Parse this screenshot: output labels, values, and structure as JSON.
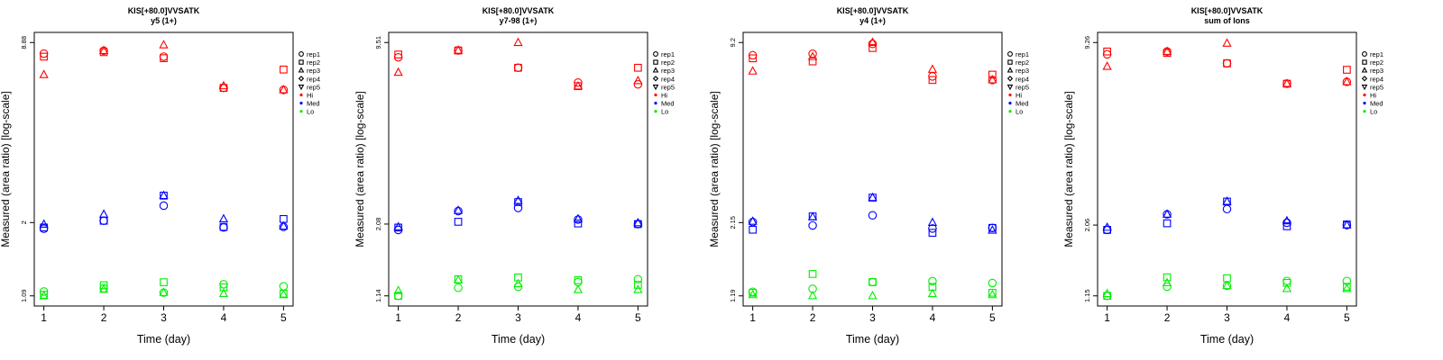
{
  "colors": {
    "Hi": "#ff0000",
    "Med": "#0000ff",
    "Lo": "#00ee00"
  },
  "chart_data": [
    {
      "type": "scatter",
      "title": "KIS[+80.0]VVSATK",
      "subtitle": "y5 (1+)",
      "xlabel": "Time (day)",
      "ylabel": "Measured (area ratio) [log-scale]",
      "x_ticks": [
        "1",
        "2",
        "3",
        "4",
        "5"
      ],
      "y_ticks": [
        "1.09",
        "2",
        "8.88"
      ],
      "ylim": [
        1.09,
        8.88
      ],
      "y_scale": "log",
      "grid": false,
      "legend_position": "right",
      "legend": [
        {
          "label": "rep1",
          "symbol": "circle"
        },
        {
          "label": "rep2",
          "symbol": "square"
        },
        {
          "label": "rep3",
          "symbol": "triangle-up"
        },
        {
          "label": "rep4",
          "symbol": "diamond"
        },
        {
          "label": "rep5",
          "symbol": "triangle-down"
        },
        {
          "label": "Hi",
          "symbol": "dot",
          "group": "Hi"
        },
        {
          "label": "Med",
          "symbol": "dot",
          "group": "Med"
        },
        {
          "label": "Lo",
          "symbol": "dot",
          "group": "Lo"
        }
      ],
      "series": [
        {
          "group": "Hi",
          "rep": "rep1",
          "x": [
            1,
            2,
            3,
            4,
            5
          ],
          "y": [
            8.1,
            8.3,
            7.9,
            6.1,
            6.0
          ]
        },
        {
          "group": "Hi",
          "rep": "rep2",
          "x": [
            1,
            2,
            3,
            4,
            5
          ],
          "y": [
            7.9,
            8.2,
            7.8,
            6.1,
            7.1
          ]
        },
        {
          "group": "Hi",
          "rep": "rep3",
          "x": [
            1,
            2,
            3,
            4,
            5
          ],
          "y": [
            6.8,
            8.3,
            8.7,
            6.2,
            6.0
          ]
        },
        {
          "group": "Med",
          "rep": "rep1",
          "x": [
            1,
            2,
            3,
            4,
            5
          ],
          "y": [
            1.9,
            2.03,
            2.3,
            1.92,
            1.93
          ]
        },
        {
          "group": "Med",
          "rep": "rep2",
          "x": [
            1,
            2,
            3,
            4,
            5
          ],
          "y": [
            1.92,
            2.03,
            2.5,
            1.93,
            2.06
          ]
        },
        {
          "group": "Med",
          "rep": "rep3",
          "x": [
            1,
            2,
            3,
            4,
            5
          ],
          "y": [
            1.97,
            2.14,
            2.5,
            2.06,
            1.94
          ]
        },
        {
          "group": "Lo",
          "rep": "rep1",
          "x": [
            1,
            2,
            3,
            4,
            5
          ],
          "y": [
            1.13,
            1.16,
            1.12,
            1.2,
            1.18
          ]
        },
        {
          "group": "Lo",
          "rep": "rep2",
          "x": [
            1,
            2,
            3,
            4,
            5
          ],
          "y": [
            1.1,
            1.19,
            1.22,
            1.17,
            1.11
          ]
        },
        {
          "group": "Lo",
          "rep": "rep3",
          "x": [
            1,
            2,
            3,
            4,
            5
          ],
          "y": [
            1.09,
            1.15,
            1.12,
            1.11,
            1.1
          ]
        }
      ]
    },
    {
      "type": "scatter",
      "title": "KIS[+80.0]VVSATK",
      "subtitle": "y7-98 (1+)",
      "xlabel": "Time (day)",
      "ylabel": "Measured (area ratio) [log-scale]",
      "x_ticks": [
        "1",
        "2",
        "3",
        "4",
        "5"
      ],
      "y_ticks": [
        "1.14",
        "2.08",
        "9.51"
      ],
      "ylim": [
        1.14,
        9.51
      ],
      "y_scale": "log",
      "grid": false,
      "legend_position": "right",
      "legend": [
        {
          "label": "rep1",
          "symbol": "circle"
        },
        {
          "label": "rep2",
          "symbol": "square"
        },
        {
          "label": "rep3",
          "symbol": "triangle-up"
        },
        {
          "label": "rep4",
          "symbol": "diamond"
        },
        {
          "label": "rep5",
          "symbol": "triangle-down"
        },
        {
          "label": "Hi",
          "symbol": "dot",
          "group": "Hi"
        },
        {
          "label": "Med",
          "symbol": "dot",
          "group": "Med"
        },
        {
          "label": "Lo",
          "symbol": "dot",
          "group": "Lo"
        }
      ],
      "series": [
        {
          "group": "Hi",
          "rep": "rep1",
          "x": [
            1,
            2,
            3,
            4,
            5
          ],
          "y": [
            8.4,
            8.9,
            7.7,
            6.8,
            6.7
          ]
        },
        {
          "group": "Hi",
          "rep": "rep2",
          "x": [
            1,
            2,
            3,
            4,
            5
          ],
          "y": [
            8.6,
            8.9,
            7.7,
            6.6,
            7.7
          ]
        },
        {
          "group": "Hi",
          "rep": "rep3",
          "x": [
            1,
            2,
            3,
            4,
            5
          ],
          "y": [
            7.4,
            8.9,
            9.5,
            6.6,
            6.9
          ]
        },
        {
          "group": "Med",
          "rep": "rep1",
          "x": [
            1,
            2,
            3,
            4,
            5
          ],
          "y": [
            1.98,
            2.32,
            2.38,
            2.16,
            2.08
          ]
        },
        {
          "group": "Med",
          "rep": "rep2",
          "x": [
            1,
            2,
            3,
            4,
            5
          ],
          "y": [
            2.02,
            2.12,
            2.5,
            2.09,
            2.08
          ]
        },
        {
          "group": "Med",
          "rep": "rep3",
          "x": [
            1,
            2,
            3,
            4,
            5
          ],
          "y": [
            2.03,
            2.33,
            2.53,
            2.17,
            2.1
          ]
        },
        {
          "group": "Lo",
          "rep": "rep1",
          "x": [
            1,
            2,
            3,
            4,
            5
          ],
          "y": [
            1.14,
            1.22,
            1.23,
            1.28,
            1.31
          ]
        },
        {
          "group": "Lo",
          "rep": "rep2",
          "x": [
            1,
            2,
            3,
            4,
            5
          ],
          "y": [
            1.14,
            1.31,
            1.33,
            1.3,
            1.25
          ]
        },
        {
          "group": "Lo",
          "rep": "rep3",
          "x": [
            1,
            2,
            3,
            4,
            5
          ],
          "y": [
            1.19,
            1.3,
            1.26,
            1.2,
            1.2
          ]
        }
      ]
    },
    {
      "type": "scatter",
      "title": "KIS[+80.0]VVSATK",
      "subtitle": "y4 (1+)",
      "xlabel": "Time (day)",
      "ylabel": "Measured (area ratio) [log-scale]",
      "x_ticks": [
        "1",
        "2",
        "3",
        "4",
        "5"
      ],
      "y_ticks": [
        "1.19",
        "2.15",
        "9.2"
      ],
      "ylim": [
        1.19,
        9.2
      ],
      "y_scale": "log",
      "grid": false,
      "legend_position": "right",
      "legend": [
        {
          "label": "rep1",
          "symbol": "circle"
        },
        {
          "label": "rep2",
          "symbol": "square"
        },
        {
          "label": "rep3",
          "symbol": "triangle-up"
        },
        {
          "label": "rep4",
          "symbol": "diamond"
        },
        {
          "label": "rep5",
          "symbol": "triangle-down"
        },
        {
          "label": "Hi",
          "symbol": "dot",
          "group": "Hi"
        },
        {
          "label": "Med",
          "symbol": "dot",
          "group": "Med"
        },
        {
          "label": "Lo",
          "symbol": "dot",
          "group": "Lo"
        }
      ],
      "series": [
        {
          "group": "Hi",
          "rep": "rep1",
          "x": [
            1,
            2,
            3,
            4,
            5
          ],
          "y": [
            8.3,
            8.4,
            9.1,
            7.0,
            6.8
          ]
        },
        {
          "group": "Hi",
          "rep": "rep2",
          "x": [
            1,
            2,
            3,
            4,
            5
          ],
          "y": [
            8.1,
            7.9,
            8.8,
            6.8,
            7.1
          ]
        },
        {
          "group": "Hi",
          "rep": "rep3",
          "x": [
            1,
            2,
            3,
            4,
            5
          ],
          "y": [
            7.3,
            8.2,
            9.2,
            7.4,
            6.8
          ]
        },
        {
          "group": "Med",
          "rep": "rep1",
          "x": [
            1,
            2,
            3,
            4,
            5
          ],
          "y": [
            2.16,
            2.1,
            2.28,
            2.05,
            2.06
          ]
        },
        {
          "group": "Med",
          "rep": "rep2",
          "x": [
            1,
            2,
            3,
            4,
            5
          ],
          "y": [
            2.03,
            2.26,
            2.63,
            1.98,
            2.06
          ]
        },
        {
          "group": "Med",
          "rep": "rep3",
          "x": [
            1,
            2,
            3,
            4,
            5
          ],
          "y": [
            2.17,
            2.25,
            2.63,
            2.15,
            2.02
          ]
        },
        {
          "group": "Lo",
          "rep": "rep1",
          "x": [
            1,
            2,
            3,
            4,
            5
          ],
          "y": [
            1.23,
            1.26,
            1.33,
            1.34,
            1.32
          ]
        },
        {
          "group": "Lo",
          "rep": "rep2",
          "x": [
            1,
            2,
            3,
            4,
            5
          ],
          "y": [
            1.22,
            1.42,
            1.33,
            1.28,
            1.22
          ]
        },
        {
          "group": "Lo",
          "rep": "rep3",
          "x": [
            1,
            2,
            3,
            4,
            5
          ],
          "y": [
            1.2,
            1.19,
            1.19,
            1.21,
            1.2
          ]
        }
      ]
    },
    {
      "type": "scatter",
      "title": "KIS[+80.0]VVSATK",
      "subtitle": "sum of Ions",
      "xlabel": "Time (day)",
      "ylabel": "Measured (area ratio) [log-scale]",
      "x_ticks": [
        "1",
        "2",
        "3",
        "4",
        "5"
      ],
      "y_ticks": [
        "1.15",
        "2.06",
        "9.26"
      ],
      "ylim": [
        1.15,
        9.26
      ],
      "y_scale": "log",
      "grid": false,
      "legend_position": "right",
      "legend": [
        {
          "label": "rep1",
          "symbol": "circle"
        },
        {
          "label": "rep2",
          "symbol": "square"
        },
        {
          "label": "rep3",
          "symbol": "triangle-up"
        },
        {
          "label": "rep4",
          "symbol": "diamond"
        },
        {
          "label": "rep5",
          "symbol": "triangle-down"
        },
        {
          "label": "Hi",
          "symbol": "dot",
          "group": "Hi"
        },
        {
          "label": "Med",
          "symbol": "dot",
          "group": "Med"
        },
        {
          "label": "Lo",
          "symbol": "dot",
          "group": "Lo"
        }
      ],
      "series": [
        {
          "group": "Hi",
          "rep": "rep1",
          "x": [
            1,
            2,
            3,
            4,
            5
          ],
          "y": [
            8.4,
            8.6,
            7.8,
            6.6,
            6.7
          ]
        },
        {
          "group": "Hi",
          "rep": "rep2",
          "x": [
            1,
            2,
            3,
            4,
            5
          ],
          "y": [
            8.6,
            8.5,
            7.8,
            6.6,
            7.4
          ]
        },
        {
          "group": "Hi",
          "rep": "rep3",
          "x": [
            1,
            2,
            3,
            4,
            5
          ],
          "y": [
            7.6,
            8.6,
            9.2,
            6.6,
            6.7
          ]
        },
        {
          "group": "Med",
          "rep": "rep1",
          "x": [
            1,
            2,
            3,
            4,
            5
          ],
          "y": [
            1.98,
            2.25,
            2.35,
            2.1,
            2.06
          ]
        },
        {
          "group": "Med",
          "rep": "rep2",
          "x": [
            1,
            2,
            3,
            4,
            5
          ],
          "y": [
            1.98,
            2.09,
            2.5,
            2.04,
            2.07
          ]
        },
        {
          "group": "Med",
          "rep": "rep3",
          "x": [
            1,
            2,
            3,
            4,
            5
          ],
          "y": [
            2.02,
            2.25,
            2.5,
            2.13,
            2.06
          ]
        },
        {
          "group": "Lo",
          "rep": "rep1",
          "x": [
            1,
            2,
            3,
            4,
            5
          ],
          "y": [
            1.15,
            1.24,
            1.25,
            1.3,
            1.3
          ]
        },
        {
          "group": "Lo",
          "rep": "rep2",
          "x": [
            1,
            2,
            3,
            4,
            5
          ],
          "y": [
            1.15,
            1.34,
            1.33,
            1.28,
            1.24
          ]
        },
        {
          "group": "Lo",
          "rep": "rep3",
          "x": [
            1,
            2,
            3,
            4,
            5
          ],
          "y": [
            1.17,
            1.28,
            1.25,
            1.22,
            1.22
          ]
        }
      ]
    }
  ]
}
